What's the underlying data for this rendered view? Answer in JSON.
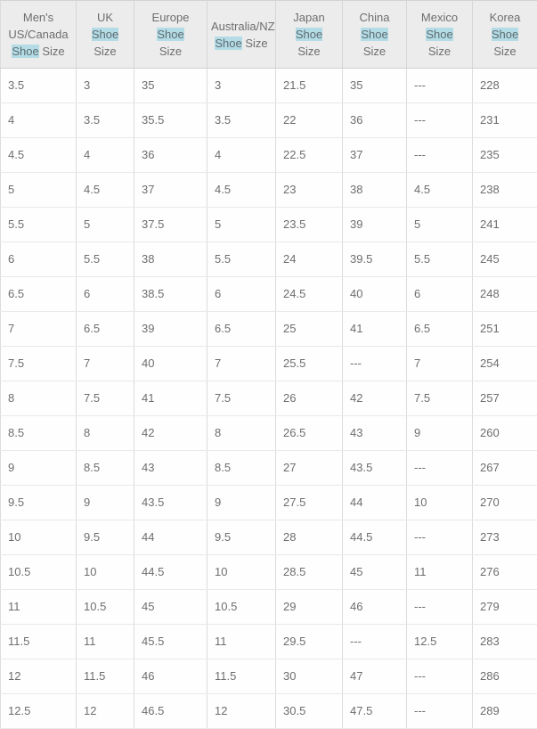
{
  "highlight_term": "Shoe",
  "colors": {
    "header_bg": "#ececec",
    "header_text": "#6e6e6e",
    "body_text": "#6e6e6e",
    "highlight_bg": "#b3dce6",
    "border_vertical": "#dcdcdc",
    "border_horizontal": "#e9e9e9"
  },
  "chart_data": {
    "type": "table",
    "columns": [
      "Men's\nUS/Canada\nShoe Size",
      "UK\nShoe\nSize",
      "Europe\nShoe\nSize",
      "Australia/NZ\nShoe Size",
      "Japan\nShoe\nSize",
      "China\nShoe\nSize",
      "Mexico\nShoe\nSize",
      "Korea\nShoe\nSize"
    ],
    "rows": [
      [
        "3.5",
        "3",
        "35",
        "3",
        "21.5",
        "35",
        "---",
        "228"
      ],
      [
        "4",
        "3.5",
        "35.5",
        "3.5",
        "22",
        "36",
        "---",
        "231"
      ],
      [
        "4.5",
        "4",
        "36",
        "4",
        "22.5",
        "37",
        "---",
        "235"
      ],
      [
        "5",
        "4.5",
        "37",
        "4.5",
        "23",
        "38",
        "4.5",
        "238"
      ],
      [
        "5.5",
        "5",
        "37.5",
        "5",
        "23.5",
        "39",
        "5",
        "241"
      ],
      [
        "6",
        "5.5",
        "38",
        "5.5",
        "24",
        "39.5",
        "5.5",
        "245"
      ],
      [
        "6.5",
        "6",
        "38.5",
        "6",
        "24.5",
        "40",
        "6",
        "248"
      ],
      [
        "7",
        "6.5",
        "39",
        "6.5",
        "25",
        "41",
        "6.5",
        "251"
      ],
      [
        "7.5",
        "7",
        "40",
        "7",
        "25.5",
        "---",
        "7",
        "254"
      ],
      [
        "8",
        "7.5",
        "41",
        "7.5",
        "26",
        "42",
        "7.5",
        "257"
      ],
      [
        "8.5",
        "8",
        "42",
        "8",
        "26.5",
        "43",
        "9",
        "260"
      ],
      [
        "9",
        "8.5",
        "43",
        "8.5",
        "27",
        "43.5",
        "---",
        "267"
      ],
      [
        "9.5",
        "9",
        "43.5",
        "9",
        "27.5",
        "44",
        "10",
        "270"
      ],
      [
        "10",
        "9.5",
        "44",
        "9.5",
        "28",
        "44.5",
        "---",
        "273"
      ],
      [
        "10.5",
        "10",
        "44.5",
        "10",
        "28.5",
        "45",
        "11",
        "276"
      ],
      [
        "11",
        "10.5",
        "45",
        "10.5",
        "29",
        "46",
        "---",
        "279"
      ],
      [
        "11.5",
        "11",
        "45.5",
        "11",
        "29.5",
        "---",
        "12.5",
        "283"
      ],
      [
        "12",
        "11.5",
        "46",
        "11.5",
        "30",
        "47",
        "---",
        "286"
      ],
      [
        "12.5",
        "12",
        "46.5",
        "12",
        "30.5",
        "47.5",
        "---",
        "289"
      ]
    ]
  }
}
